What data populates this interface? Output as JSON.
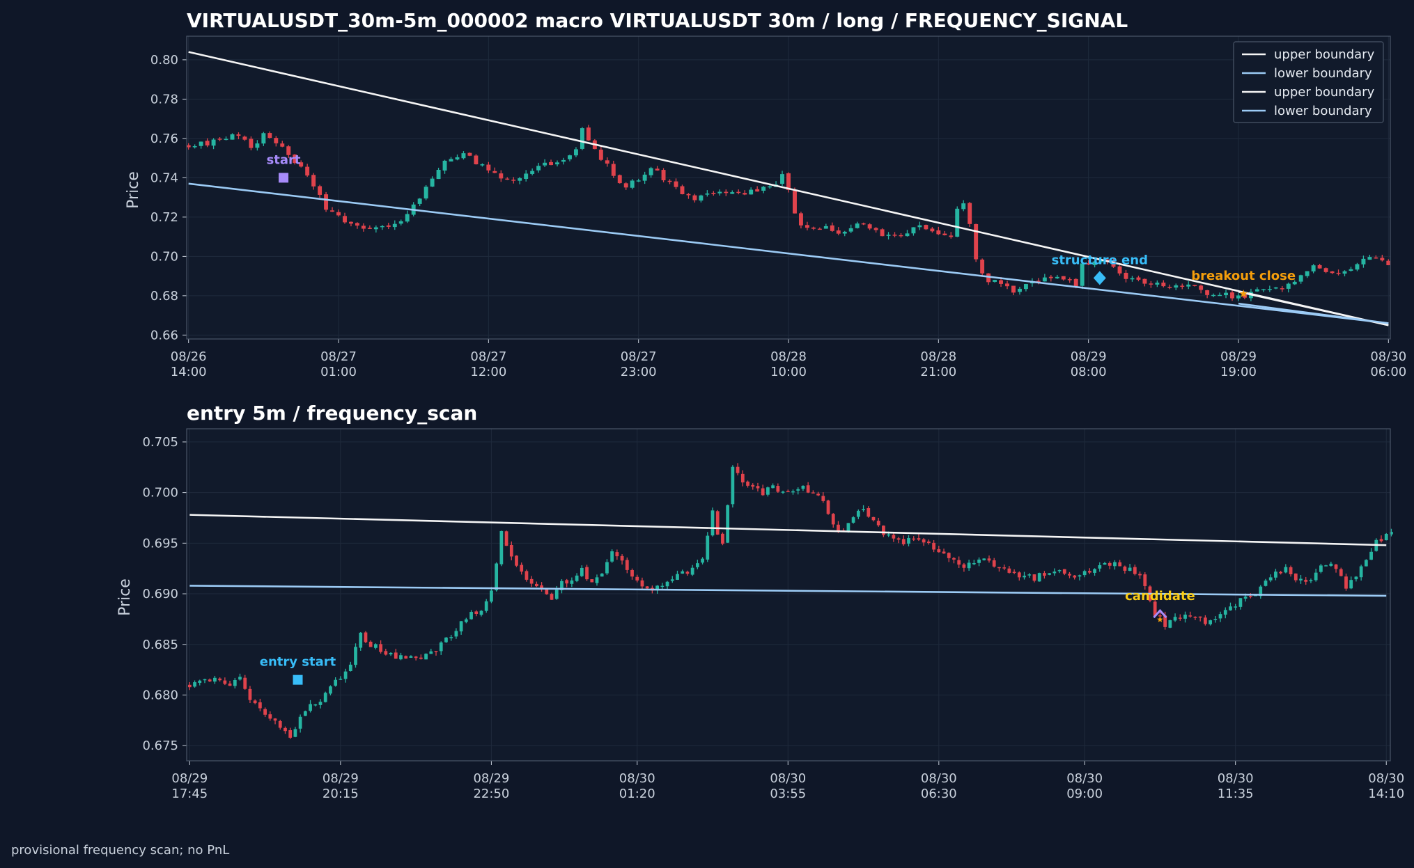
{
  "footer": "provisional frequency scan; no PnL",
  "colors": {
    "background": "#0f1728",
    "axes_bg": "#111a2b",
    "grid": "#1f2a3c",
    "spine": "#4a5668",
    "up_candle": "#26b5a2",
    "down_candle": "#e0434c",
    "upper_boundary": "#f5f5f5",
    "lower_boundary": "#9ccbf5",
    "start_marker": "#a78bfa",
    "structure_end": "#38bdf8",
    "breakout": "#f59e0b",
    "entry_start": "#38bdf8",
    "candidate_text": "#facc15",
    "candidate_marker": "#a78bfa"
  },
  "chart_data": [
    {
      "type": "candlestick",
      "title": "VIRTUALUSDT_30m-5m_000002 macro VIRTUALUSDT 30m / long / FREQUENCY_SIGNAL",
      "ylabel": "Price",
      "xlabel": "",
      "grid": true,
      "legend_position": "top-right",
      "ylim": [
        0.658,
        0.812
      ],
      "xlim": [
        -0.3,
        192.3
      ],
      "yticks": [
        0.66,
        0.68,
        0.7,
        0.72,
        0.74,
        0.76,
        0.78,
        0.8
      ],
      "ytick_labels": [
        "0.66",
        "0.68",
        "0.70",
        "0.72",
        "0.74",
        "0.76",
        "0.78",
        "0.80"
      ],
      "xticks": [
        0,
        24,
        48,
        72,
        96,
        120,
        144,
        168,
        192
      ],
      "xtick_labels": [
        [
          "08/26",
          "14:00"
        ],
        [
          "08/27",
          "01:00"
        ],
        [
          "08/27",
          "12:00"
        ],
        [
          "08/27",
          "23:00"
        ],
        [
          "08/28",
          "10:00"
        ],
        [
          "08/28",
          "21:00"
        ],
        [
          "08/29",
          "08:00"
        ],
        [
          "08/29",
          "19:00"
        ],
        [
          "08/30",
          "06:00"
        ]
      ],
      "bar_interval": "30m",
      "path_anchors": [
        [
          0,
          0.757
        ],
        [
          4,
          0.758
        ],
        [
          8,
          0.762
        ],
        [
          10,
          0.755
        ],
        [
          12,
          0.762
        ],
        [
          14,
          0.757
        ],
        [
          16,
          0.752
        ],
        [
          18,
          0.745
        ],
        [
          19,
          0.74
        ],
        [
          20,
          0.735
        ],
        [
          22,
          0.725
        ],
        [
          24,
          0.72
        ],
        [
          26,
          0.716
        ],
        [
          28,
          0.715
        ],
        [
          30,
          0.716
        ],
        [
          32,
          0.716
        ],
        [
          34,
          0.718
        ],
        [
          36,
          0.726
        ],
        [
          38,
          0.735
        ],
        [
          40,
          0.745
        ],
        [
          42,
          0.75
        ],
        [
          44,
          0.753
        ],
        [
          46,
          0.748
        ],
        [
          48,
          0.744
        ],
        [
          50,
          0.74
        ],
        [
          52,
          0.738
        ],
        [
          54,
          0.742
        ],
        [
          56,
          0.746
        ],
        [
          58,
          0.748
        ],
        [
          60,
          0.75
        ],
        [
          62,
          0.755
        ],
        [
          63,
          0.765
        ],
        [
          64,
          0.76
        ],
        [
          66,
          0.75
        ],
        [
          68,
          0.742
        ],
        [
          70,
          0.735
        ],
        [
          72,
          0.74
        ],
        [
          74,
          0.745
        ],
        [
          76,
          0.74
        ],
        [
          78,
          0.735
        ],
        [
          80,
          0.73
        ],
        [
          82,
          0.73
        ],
        [
          84,
          0.732
        ],
        [
          86,
          0.732
        ],
        [
          88,
          0.733
        ],
        [
          90,
          0.733
        ],
        [
          92,
          0.735
        ],
        [
          94,
          0.738
        ],
        [
          95,
          0.742
        ],
        [
          96,
          0.735
        ],
        [
          97,
          0.722
        ],
        [
          98,
          0.716
        ],
        [
          100,
          0.715
        ],
        [
          102,
          0.714
        ],
        [
          104,
          0.713
        ],
        [
          106,
          0.715
        ],
        [
          108,
          0.716
        ],
        [
          110,
          0.712
        ],
        [
          112,
          0.71
        ],
        [
          114,
          0.711
        ],
        [
          116,
          0.715
        ],
        [
          118,
          0.715
        ],
        [
          120,
          0.712
        ],
        [
          122,
          0.71
        ],
        [
          123,
          0.725
        ],
        [
          124,
          0.728
        ],
        [
          125,
          0.715
        ],
        [
          126,
          0.7
        ],
        [
          127,
          0.69
        ],
        [
          128,
          0.688
        ],
        [
          130,
          0.686
        ],
        [
          132,
          0.682
        ],
        [
          134,
          0.685
        ],
        [
          136,
          0.688
        ],
        [
          138,
          0.69
        ],
        [
          140,
          0.688
        ],
        [
          142,
          0.686
        ],
        [
          143,
          0.695
        ],
        [
          145,
          0.697
        ],
        [
          146,
          0.698
        ],
        [
          148,
          0.695
        ],
        [
          150,
          0.69
        ],
        [
          152,
          0.688
        ],
        [
          154,
          0.686
        ],
        [
          156,
          0.685
        ],
        [
          158,
          0.686
        ],
        [
          160,
          0.686
        ],
        [
          162,
          0.682
        ],
        [
          164,
          0.681
        ],
        [
          166,
          0.68
        ],
        [
          168,
          0.679
        ],
        [
          169,
          0.68
        ],
        [
          170,
          0.682
        ],
        [
          172,
          0.683
        ],
        [
          174,
          0.683
        ],
        [
          176,
          0.685
        ],
        [
          178,
          0.69
        ],
        [
          180,
          0.694
        ],
        [
          182,
          0.693
        ],
        [
          184,
          0.692
        ],
        [
          186,
          0.692
        ],
        [
          188,
          0.7
        ],
        [
          190,
          0.699
        ],
        [
          191,
          0.697
        ],
        [
          192,
          0.694
        ]
      ],
      "lines": [
        {
          "name": "upper boundary",
          "color_key": "upper_boundary",
          "x": [
            0,
            192
          ],
          "y": [
            0.804,
            0.665
          ]
        },
        {
          "name": "lower boundary",
          "color_key": "lower_boundary",
          "x": [
            0,
            192
          ],
          "y": [
            0.737,
            0.666
          ]
        },
        {
          "name": "upper boundary",
          "color_key": "upper_boundary",
          "x": [
            168,
            192
          ],
          "y": [
            0.682,
            0.665
          ]
        },
        {
          "name": "lower boundary",
          "color_key": "lower_boundary",
          "x": [
            168,
            192
          ],
          "y": [
            0.676,
            0.666
          ]
        }
      ],
      "legend": [
        "upper boundary",
        "lower boundary",
        "upper boundary",
        "lower boundary"
      ],
      "annotations": [
        {
          "text": "start",
          "x": 15.2,
          "y": 0.74,
          "marker": "square",
          "color_key": "start_marker"
        },
        {
          "text": "structure end",
          "x": 145.8,
          "y": 0.689,
          "marker": "diamond",
          "color_key": "structure_end"
        },
        {
          "text": "breakout close",
          "x": 168.8,
          "y": 0.681,
          "marker": "star",
          "color_key": "breakout"
        }
      ]
    },
    {
      "type": "candlestick",
      "title": "entry 5m / frequency_scan",
      "ylabel": "Price",
      "xlabel": "",
      "grid": true,
      "ylim": [
        0.6735,
        0.7063
      ],
      "xlim": [
        -0.6,
        238.8
      ],
      "yticks": [
        0.675,
        0.68,
        0.685,
        0.69,
        0.695,
        0.7,
        0.705
      ],
      "ytick_labels": [
        "0.675",
        "0.680",
        "0.685",
        "0.690",
        "0.695",
        "0.700",
        "0.705"
      ],
      "xticks": [
        0,
        30,
        60,
        89,
        119,
        149,
        178,
        208,
        238
      ],
      "xtick_labels": [
        [
          "08/29",
          "17:45"
        ],
        [
          "08/29",
          "20:15"
        ],
        [
          "08/29",
          "22:50"
        ],
        [
          "08/30",
          "01:20"
        ],
        [
          "08/30",
          "03:55"
        ],
        [
          "08/30",
          "06:30"
        ],
        [
          "08/30",
          "09:00"
        ],
        [
          "08/30",
          "11:35"
        ],
        [
          "08/30",
          "14:10"
        ]
      ],
      "bar_interval": "5m",
      "path_anchors": [
        [
          0,
          0.681
        ],
        [
          4,
          0.6815
        ],
        [
          8,
          0.681
        ],
        [
          10,
          0.6815
        ],
        [
          12,
          0.6795
        ],
        [
          14,
          0.6785
        ],
        [
          16,
          0.6775
        ],
        [
          18,
          0.677
        ],
        [
          20,
          0.6758
        ],
        [
          21,
          0.6765
        ],
        [
          22,
          0.678
        ],
        [
          24,
          0.679
        ],
        [
          26,
          0.6795
        ],
        [
          28,
          0.681
        ],
        [
          30,
          0.6818
        ],
        [
          32,
          0.683
        ],
        [
          34,
          0.686
        ],
        [
          36,
          0.685
        ],
        [
          38,
          0.6845
        ],
        [
          40,
          0.684
        ],
        [
          42,
          0.6838
        ],
        [
          44,
          0.684
        ],
        [
          46,
          0.6838
        ],
        [
          48,
          0.684
        ],
        [
          50,
          0.685
        ],
        [
          52,
          0.686
        ],
        [
          54,
          0.687
        ],
        [
          56,
          0.688
        ],
        [
          58,
          0.6885
        ],
        [
          60,
          0.69
        ],
        [
          62,
          0.696
        ],
        [
          64,
          0.694
        ],
        [
          66,
          0.692
        ],
        [
          68,
          0.691
        ],
        [
          70,
          0.6905
        ],
        [
          72,
          0.6895
        ],
        [
          74,
          0.691
        ],
        [
          76,
          0.6915
        ],
        [
          78,
          0.6925
        ],
        [
          80,
          0.691
        ],
        [
          82,
          0.692
        ],
        [
          84,
          0.694
        ],
        [
          86,
          0.693
        ],
        [
          88,
          0.692
        ],
        [
          90,
          0.691
        ],
        [
          92,
          0.69
        ],
        [
          94,
          0.691
        ],
        [
          96,
          0.6915
        ],
        [
          98,
          0.692
        ],
        [
          100,
          0.6925
        ],
        [
          102,
          0.6935
        ],
        [
          104,
          0.698
        ],
        [
          105,
          0.696
        ],
        [
          106,
          0.695
        ],
        [
          108,
          0.7025
        ],
        [
          110,
          0.701
        ],
        [
          112,
          0.7005
        ],
        [
          114,
          0.7
        ],
        [
          116,
          0.7005
        ],
        [
          118,
          0.7
        ],
        [
          120,
          0.6998
        ],
        [
          122,
          0.7005
        ],
        [
          124,
          0.7
        ],
        [
          126,
          0.699
        ],
        [
          128,
          0.697
        ],
        [
          130,
          0.696
        ],
        [
          132,
          0.6975
        ],
        [
          134,
          0.6985
        ],
        [
          136,
          0.697
        ],
        [
          138,
          0.696
        ],
        [
          140,
          0.6955
        ],
        [
          142,
          0.695
        ],
        [
          144,
          0.6955
        ],
        [
          146,
          0.695
        ],
        [
          148,
          0.6945
        ],
        [
          150,
          0.694
        ],
        [
          152,
          0.6935
        ],
        [
          154,
          0.6928
        ],
        [
          156,
          0.693
        ],
        [
          158,
          0.6932
        ],
        [
          160,
          0.6928
        ],
        [
          162,
          0.6925
        ],
        [
          164,
          0.692
        ],
        [
          166,
          0.6918
        ],
        [
          168,
          0.6915
        ],
        [
          170,
          0.692
        ],
        [
          172,
          0.6925
        ],
        [
          174,
          0.692
        ],
        [
          176,
          0.6915
        ],
        [
          178,
          0.692
        ],
        [
          180,
          0.6925
        ],
        [
          182,
          0.6928
        ],
        [
          184,
          0.693
        ],
        [
          186,
          0.6925
        ],
        [
          188,
          0.692
        ],
        [
          190,
          0.691
        ],
        [
          192,
          0.688
        ],
        [
          194,
          0.687
        ],
        [
          196,
          0.6875
        ],
        [
          198,
          0.688
        ],
        [
          200,
          0.6878
        ],
        [
          202,
          0.6872
        ],
        [
          204,
          0.6875
        ],
        [
          206,
          0.6885
        ],
        [
          208,
          0.689
        ],
        [
          210,
          0.6895
        ],
        [
          212,
          0.69
        ],
        [
          214,
          0.6915
        ],
        [
          216,
          0.692
        ],
        [
          218,
          0.6925
        ],
        [
          220,
          0.6915
        ],
        [
          222,
          0.691
        ],
        [
          224,
          0.692
        ],
        [
          226,
          0.693
        ],
        [
          228,
          0.6925
        ],
        [
          230,
          0.6905
        ],
        [
          232,
          0.692
        ],
        [
          234,
          0.6935
        ],
        [
          236,
          0.695
        ],
        [
          238,
          0.696
        ]
      ],
      "lines": [
        {
          "name": "upper boundary",
          "color_key": "upper_boundary",
          "x": [
            0,
            238
          ],
          "y": [
            0.6978,
            0.6948
          ]
        },
        {
          "name": "lower boundary",
          "color_key": "lower_boundary",
          "x": [
            0,
            238
          ],
          "y": [
            0.6908,
            0.6898
          ]
        }
      ],
      "annotations": [
        {
          "text": "entry start",
          "x": 21.5,
          "y": 0.6815,
          "marker": "square",
          "color_key": "entry_start"
        },
        {
          "text": "candidate",
          "x": 193,
          "y": 0.688,
          "marker": "caret",
          "color_key": "candidate_text",
          "marker_color_key": "candidate_marker"
        }
      ]
    }
  ]
}
